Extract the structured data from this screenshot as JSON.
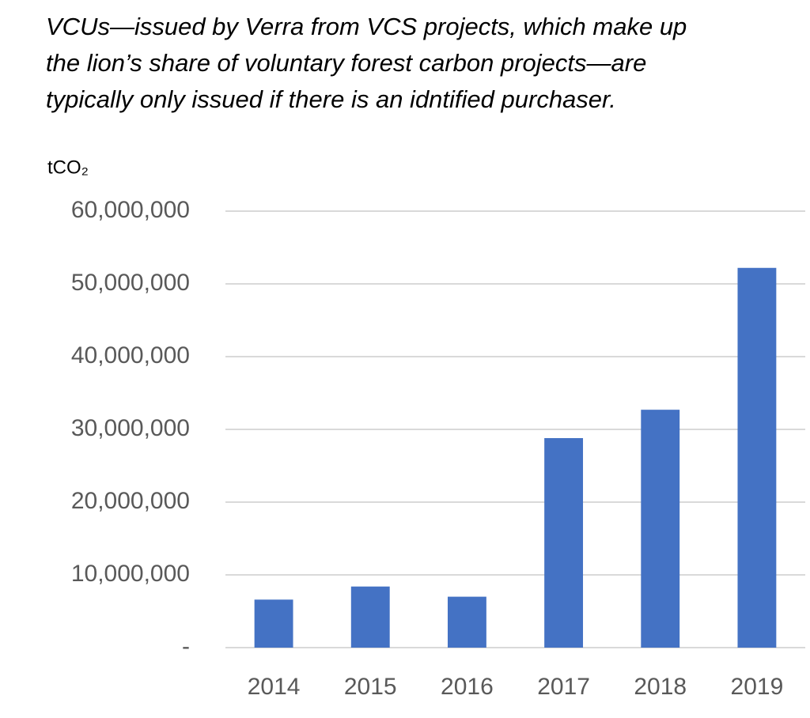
{
  "chart_data": {
    "type": "bar",
    "title": [
      "VCUs—issued by Verra from VCS projects, which make up",
      "the lion’s share of voluntary forest carbon projects—are",
      "typically only issued if there is an idntified purchaser."
    ],
    "y_label": "tCO₂",
    "categories": [
      "2014",
      "2015",
      "2016",
      "2017",
      "2018",
      "2019"
    ],
    "values": [
      6600000,
      8400000,
      7000000,
      28800000,
      32700000,
      52200000
    ],
    "color": "#4472c4",
    "ylim": [
      0,
      60000000
    ],
    "yticks": [
      {
        "value": 0,
        "label": "-"
      },
      {
        "value": 10000000,
        "label": "10,000,000"
      },
      {
        "value": 20000000,
        "label": "20,000,000"
      },
      {
        "value": 30000000,
        "label": "30,000,000"
      },
      {
        "value": 40000000,
        "label": "40,000,000"
      },
      {
        "value": 50000000,
        "label": "50,000,000"
      },
      {
        "value": 60000000,
        "label": "60,000,000"
      }
    ],
    "grid": true
  }
}
